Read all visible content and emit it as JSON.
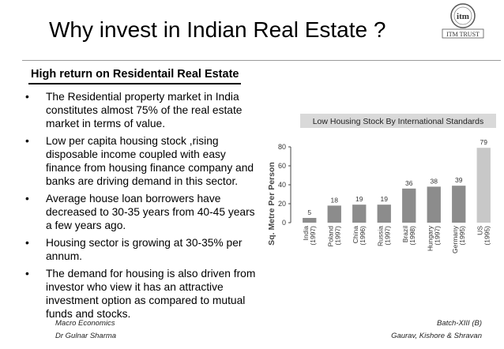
{
  "slide": {
    "title": "Why invest in Indian Real Estate ?",
    "logo_text": "itm",
    "logo_caption": "ITM TRUST",
    "subtitle": "High return on Residentail Real Estate",
    "bullets": [
      "The Residential property market in India constitutes almost 75% of the real estate market in terms of value.",
      "Low per capita housing stock ,rising disposable income coupled with easy finance from housing finance company and banks are driving demand in this sector.",
      "Average house loan borrowers have decreased to 30-35 years from 40-45 years a few years ago.",
      "Housing sector is growing at 30-35% per annum.",
      "The demand for housing is also driven from investor who view it has an attractive investment option as compared to mutual funds and stocks."
    ],
    "bullet_glyph": "•",
    "footer": {
      "left_line1": "Macro Economics",
      "left_line2": "Dr Gulnar Sharma",
      "right_line1": "Batch-XIII (B)",
      "right_line2": "Gaurav, Kishore & Shravan"
    }
  },
  "chart_data": {
    "type": "bar",
    "title": "Low Housing Stock By International Standards",
    "ylabel": "Sq. Metre Per Person",
    "xlabel": "",
    "categories": [
      "India (1997)",
      "Poland (1997)",
      "China (1996)",
      "Russia (1997)",
      "Brazil (1998)",
      "Hungary (1997)",
      "Germany (1995)",
      "US (1995)"
    ],
    "values": [
      5,
      18,
      19,
      19,
      36,
      38,
      39,
      79
    ],
    "ylim": [
      0,
      80
    ],
    "yticks": [
      0,
      20,
      40,
      60,
      80
    ],
    "grid": false,
    "colors": {
      "title_bar": "#d9d9d9",
      "bar": "#8c8c8c",
      "last_bar": "#c8c8c8"
    }
  }
}
